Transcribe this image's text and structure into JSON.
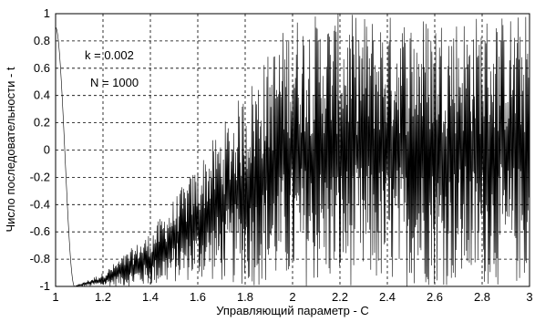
{
  "chart_data": {
    "type": "line",
    "title": "",
    "xlabel": "Управляющий параметр - С",
    "ylabel": "Число последовательности - t",
    "xlim": [
      1,
      3
    ],
    "ylim": [
      -1,
      1
    ],
    "x_ticks": [
      "1",
      "1.2",
      "1.4",
      "1.6",
      "1.8",
      "2",
      "2.2",
      "2.4",
      "2.6",
      "2.8",
      "3"
    ],
    "y_ticks": [
      "1",
      "0.8",
      "0.6",
      "0.4",
      "0.2",
      "0",
      "-0.2",
      "-0.4",
      "-0.6",
      "-0.8",
      "-1"
    ],
    "grid": true,
    "annotations": [
      "k = 0.002",
      "N = 1000"
    ],
    "series": [
      {
        "description": "oscillating sequence; smooth drop from 0.9 to -1 over C 1.0–1.08, then dense oscillations whose amplitude grows with C",
        "x_start": 1.0,
        "x_end": 3.0,
        "points": 1000,
        "envelope": [
          {
            "x": 1.0,
            "lower": 0.9,
            "upper": 0.9
          },
          {
            "x": 1.08,
            "lower": -1.0,
            "upper": -1.0
          },
          {
            "x": 1.2,
            "lower": -1.0,
            "upper": -0.9
          },
          {
            "x": 1.4,
            "lower": -1.0,
            "upper": -0.6
          },
          {
            "x": 1.6,
            "lower": -0.95,
            "upper": -0.1
          },
          {
            "x": 1.8,
            "lower": -1.0,
            "upper": 0.45
          },
          {
            "x": 2.0,
            "lower": -1.0,
            "upper": 1.0
          },
          {
            "x": 3.0,
            "lower": -1.0,
            "upper": 1.0
          }
        ]
      }
    ]
  }
}
